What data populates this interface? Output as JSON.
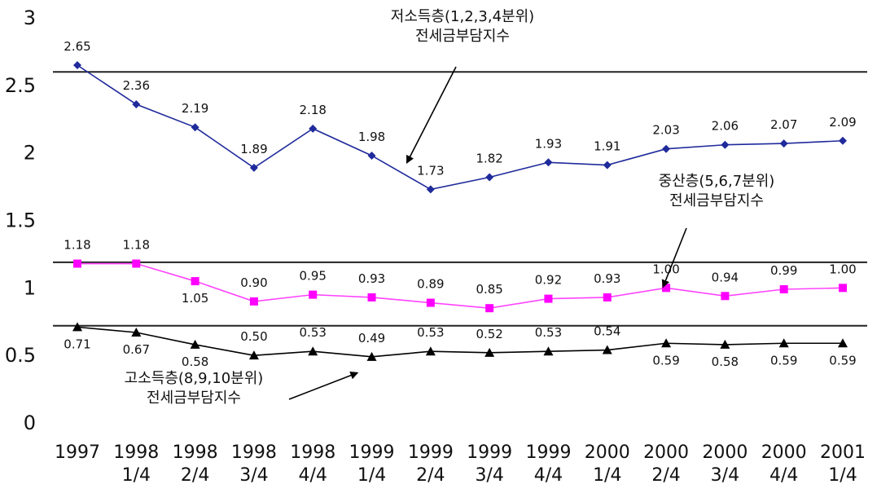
{
  "chart_data": {
    "type": "line",
    "categories": [
      [
        "1997"
      ],
      [
        "1998",
        "1/4"
      ],
      [
        "1998",
        "2/4"
      ],
      [
        "1998",
        "3/4"
      ],
      [
        "1998",
        "4/4"
      ],
      [
        "1999",
        "1/4"
      ],
      [
        "1999",
        "2/4"
      ],
      [
        "1999",
        "3/4"
      ],
      [
        "1999",
        "4/4"
      ],
      [
        "2000",
        "1/4"
      ],
      [
        "2000",
        "2/4"
      ],
      [
        "2000",
        "3/4"
      ],
      [
        "2000",
        "4/4"
      ],
      [
        "2001",
        "1/4"
      ]
    ],
    "ylim": [
      0,
      3
    ],
    "yticks": [
      "0",
      "0.5",
      "1",
      "1.5",
      "2",
      "2.5",
      "3"
    ],
    "ytick_values": [
      0,
      0.5,
      1,
      1.5,
      2,
      2.5,
      3
    ],
    "reference_lines": [
      2.6,
      1.19,
      0.72
    ],
    "grid": false,
    "series": [
      {
        "values": [
          2.65,
          2.36,
          2.19,
          1.89,
          2.18,
          1.98,
          1.73,
          1.82,
          1.93,
          1.91,
          2.03,
          2.06,
          2.07,
          2.09
        ],
        "labels": [
          "2.65",
          "2.36",
          "2.19",
          "1.89",
          "2.18",
          "1.98",
          "1.73",
          "1.82",
          "1.93",
          "1.91",
          "2.03",
          "2.06",
          "2.07",
          "2.09"
        ],
        "label_pos": [
          "above",
          "above",
          "above",
          "above",
          "above",
          "above",
          "above",
          "above",
          "above",
          "above",
          "above",
          "above",
          "above",
          "above"
        ],
        "color": "#1f2a9b",
        "marker": "diamond"
      },
      {
        "values": [
          1.18,
          1.18,
          1.05,
          0.9,
          0.95,
          0.93,
          0.89,
          0.85,
          0.92,
          0.93,
          1.0,
          0.94,
          0.99,
          1.0
        ],
        "labels": [
          "1.18",
          "1.18",
          "1.05",
          "0.90",
          "0.95",
          "0.93",
          "0.89",
          "0.85",
          "0.92",
          "0.93",
          "1.00",
          "0.94",
          "0.99",
          "1.00"
        ],
        "label_pos": [
          "above",
          "above",
          "below",
          "above",
          "above",
          "above",
          "above",
          "above",
          "above",
          "above",
          "above",
          "above",
          "above",
          "above"
        ],
        "color": "#ff00ff",
        "line_color": "#ff44ff",
        "marker": "square"
      },
      {
        "values": [
          0.71,
          0.67,
          0.58,
          0.5,
          0.53,
          0.49,
          0.53,
          0.52,
          0.53,
          0.54,
          0.59,
          0.58,
          0.59,
          0.59
        ],
        "labels": [
          "0.71",
          "0.67",
          "0.58",
          "0.50",
          "0.53",
          "0.49",
          "0.53",
          "0.52",
          "0.53",
          "0.54",
          "0.59",
          "0.58",
          "0.59",
          "0.59"
        ],
        "label_pos": [
          "below",
          "below",
          "below",
          "above",
          "above",
          "above",
          "above",
          "above",
          "above",
          "above",
          "below",
          "below",
          "below",
          "below"
        ],
        "color": "#000000",
        "marker": "triangle"
      }
    ],
    "annotations": [
      {
        "lines": [
          "저소득층(1,2,3,4분위)",
          "전세금부담지수"
        ],
        "points_to": {
          "series": 0,
          "category_index": 5.6,
          "value": 1.93
        }
      },
      {
        "lines": [
          "중산층(5,6,7분위)",
          "전세금부담지수"
        ],
        "points_to": {
          "series": 1,
          "category_index": 9.95,
          "value": 1.01
        }
      },
      {
        "lines": [
          "고소득층(8,9,10분위)",
          "전세금부담지수"
        ],
        "points_to": {
          "series": 2,
          "category_index": 4.75,
          "value": 0.37
        }
      }
    ]
  }
}
